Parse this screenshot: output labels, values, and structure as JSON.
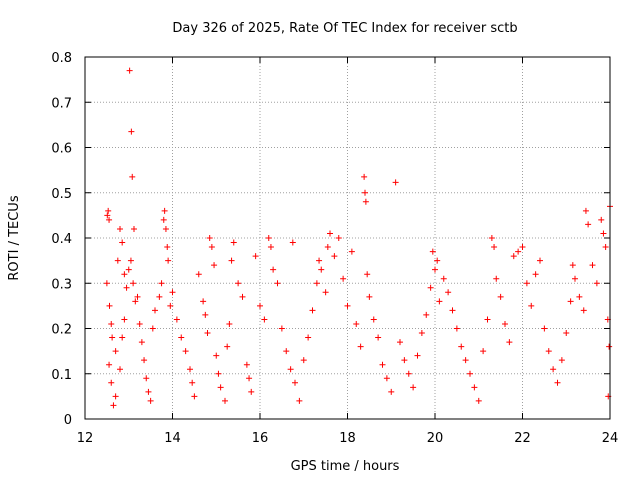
{
  "chart_data": {
    "type": "scatter",
    "title": "Day 326 of 2025, Rate Of TEC Index for receiver sctb",
    "xlabel": "GPS time / hours",
    "ylabel": "ROTI / TECUs",
    "xlim": [
      12,
      24
    ],
    "ylim": [
      0,
      0.8
    ],
    "x_ticks": [
      "12",
      "14",
      "16",
      "18",
      "20",
      "22",
      "24"
    ],
    "y_ticks": [
      "0",
      "0.1",
      "0.2",
      "0.3",
      "0.4",
      "0.5",
      "0.6",
      "0.7",
      "0.8"
    ],
    "grid": true,
    "marker": "plus",
    "color": "#ff0000",
    "series": [
      {
        "points": [
          [
            12.51,
            0.45
          ],
          [
            12.53,
            0.46
          ],
          [
            12.55,
            0.44
          ],
          [
            12.5,
            0.3
          ],
          [
            12.56,
            0.25
          ],
          [
            12.6,
            0.21
          ],
          [
            12.62,
            0.18
          ],
          [
            12.7,
            0.15
          ],
          [
            12.55,
            0.12
          ],
          [
            12.6,
            0.08
          ],
          [
            12.75,
            0.35
          ],
          [
            12.8,
            0.42
          ],
          [
            12.85,
            0.39
          ],
          [
            12.9,
            0.32
          ],
          [
            12.95,
            0.29
          ],
          [
            12.9,
            0.22
          ],
          [
            12.8,
            0.11
          ],
          [
            12.7,
            0.05
          ],
          [
            12.65,
            0.03
          ],
          [
            12.85,
            0.18
          ],
          [
            13.02,
            0.77
          ],
          [
            13.06,
            0.635
          ],
          [
            13.08,
            0.535
          ],
          [
            13.05,
            0.35
          ],
          [
            13.1,
            0.3
          ],
          [
            13.15,
            0.26
          ],
          [
            13.0,
            0.33
          ],
          [
            13.12,
            0.42
          ],
          [
            13.2,
            0.27
          ],
          [
            13.25,
            0.21
          ],
          [
            13.3,
            0.17
          ],
          [
            13.35,
            0.13
          ],
          [
            13.4,
            0.09
          ],
          [
            13.45,
            0.06
          ],
          [
            13.5,
            0.04
          ],
          [
            13.55,
            0.2
          ],
          [
            13.6,
            0.24
          ],
          [
            13.7,
            0.27
          ],
          [
            13.75,
            0.3
          ],
          [
            13.8,
            0.44
          ],
          [
            13.82,
            0.46
          ],
          [
            13.85,
            0.42
          ],
          [
            13.88,
            0.38
          ],
          [
            13.9,
            0.35
          ],
          [
            13.95,
            0.25
          ],
          [
            14.0,
            0.28
          ],
          [
            14.1,
            0.22
          ],
          [
            14.2,
            0.18
          ],
          [
            14.3,
            0.15
          ],
          [
            14.4,
            0.11
          ],
          [
            14.45,
            0.08
          ],
          [
            14.5,
            0.05
          ],
          [
            14.6,
            0.32
          ],
          [
            14.7,
            0.26
          ],
          [
            14.75,
            0.23
          ],
          [
            14.8,
            0.19
          ],
          [
            14.85,
            0.4
          ],
          [
            14.9,
            0.38
          ],
          [
            14.95,
            0.34
          ],
          [
            15.0,
            0.14
          ],
          [
            15.05,
            0.1
          ],
          [
            15.1,
            0.07
          ],
          [
            15.2,
            0.04
          ],
          [
            15.25,
            0.16
          ],
          [
            15.3,
            0.21
          ],
          [
            15.35,
            0.35
          ],
          [
            15.4,
            0.39
          ],
          [
            15.5,
            0.3
          ],
          [
            15.6,
            0.27
          ],
          [
            15.7,
            0.12
          ],
          [
            15.75,
            0.09
          ],
          [
            15.8,
            0.06
          ],
          [
            15.9,
            0.36
          ],
          [
            16.0,
            0.25
          ],
          [
            16.1,
            0.22
          ],
          [
            16.2,
            0.4
          ],
          [
            16.25,
            0.38
          ],
          [
            16.3,
            0.33
          ],
          [
            16.4,
            0.3
          ],
          [
            16.5,
            0.2
          ],
          [
            16.6,
            0.15
          ],
          [
            16.7,
            0.11
          ],
          [
            16.75,
            0.39
          ],
          [
            16.8,
            0.08
          ],
          [
            16.9,
            0.04
          ],
          [
            17.0,
            0.13
          ],
          [
            17.1,
            0.18
          ],
          [
            17.2,
            0.24
          ],
          [
            17.3,
            0.3
          ],
          [
            17.35,
            0.35
          ],
          [
            17.4,
            0.33
          ],
          [
            17.5,
            0.28
          ],
          [
            17.55,
            0.38
          ],
          [
            17.6,
            0.41
          ],
          [
            17.7,
            0.36
          ],
          [
            17.8,
            0.4
          ],
          [
            17.9,
            0.31
          ],
          [
            18.0,
            0.25
          ],
          [
            18.1,
            0.37
          ],
          [
            18.2,
            0.21
          ],
          [
            18.3,
            0.16
          ],
          [
            18.38,
            0.535
          ],
          [
            18.4,
            0.5
          ],
          [
            18.42,
            0.48
          ],
          [
            18.45,
            0.32
          ],
          [
            18.5,
            0.27
          ],
          [
            18.6,
            0.22
          ],
          [
            18.7,
            0.18
          ],
          [
            18.8,
            0.12
          ],
          [
            18.9,
            0.09
          ],
          [
            19.0,
            0.06
          ],
          [
            19.1,
            0.523
          ],
          [
            19.2,
            0.17
          ],
          [
            19.3,
            0.13
          ],
          [
            19.4,
            0.1
          ],
          [
            19.5,
            0.07
          ],
          [
            19.6,
            0.14
          ],
          [
            19.7,
            0.19
          ],
          [
            19.8,
            0.23
          ],
          [
            19.9,
            0.29
          ],
          [
            19.95,
            0.37
          ],
          [
            20.0,
            0.33
          ],
          [
            20.05,
            0.35
          ],
          [
            20.1,
            0.26
          ],
          [
            20.2,
            0.31
          ],
          [
            20.3,
            0.28
          ],
          [
            20.4,
            0.24
          ],
          [
            20.5,
            0.2
          ],
          [
            20.6,
            0.16
          ],
          [
            20.7,
            0.13
          ],
          [
            20.8,
            0.1
          ],
          [
            20.9,
            0.07
          ],
          [
            21.0,
            0.04
          ],
          [
            21.1,
            0.15
          ],
          [
            21.2,
            0.22
          ],
          [
            21.3,
            0.4
          ],
          [
            21.35,
            0.38
          ],
          [
            21.4,
            0.31
          ],
          [
            21.5,
            0.27
          ],
          [
            21.6,
            0.21
          ],
          [
            21.7,
            0.17
          ],
          [
            21.8,
            0.36
          ],
          [
            21.9,
            0.37
          ],
          [
            22.0,
            0.38
          ],
          [
            22.1,
            0.3
          ],
          [
            22.2,
            0.25
          ],
          [
            22.3,
            0.32
          ],
          [
            22.4,
            0.35
          ],
          [
            22.5,
            0.2
          ],
          [
            22.6,
            0.15
          ],
          [
            22.7,
            0.11
          ],
          [
            22.8,
            0.08
          ],
          [
            22.9,
            0.13
          ],
          [
            23.0,
            0.19
          ],
          [
            23.1,
            0.26
          ],
          [
            23.15,
            0.34
          ],
          [
            23.2,
            0.31
          ],
          [
            23.3,
            0.27
          ],
          [
            23.4,
            0.24
          ],
          [
            23.45,
            0.46
          ],
          [
            23.5,
            0.43
          ],
          [
            23.6,
            0.34
          ],
          [
            23.7,
            0.3
          ],
          [
            23.8,
            0.44
          ],
          [
            23.85,
            0.41
          ],
          [
            23.9,
            0.38
          ],
          [
            23.95,
            0.22
          ],
          [
            24.0,
            0.47
          ],
          [
            23.98,
            0.16
          ],
          [
            23.96,
            0.05
          ]
        ]
      }
    ]
  }
}
